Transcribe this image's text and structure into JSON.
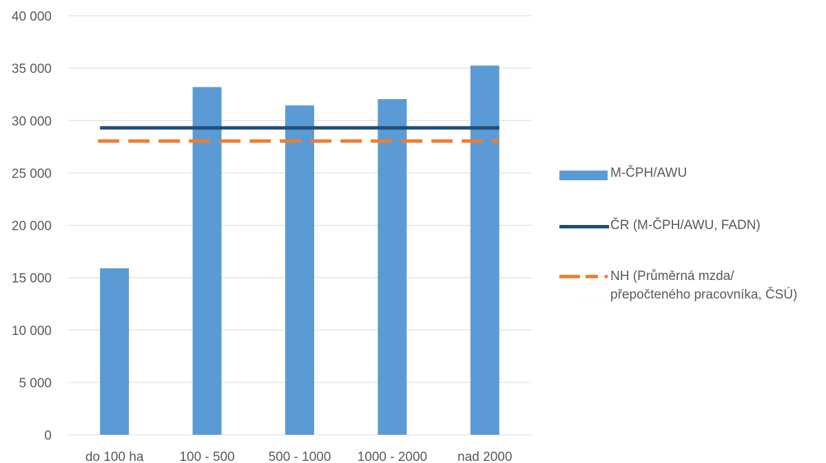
{
  "colors": {
    "bar": "#5b9bd5",
    "national": "#1f4e79",
    "wage": "#ed7d31",
    "grid": "#d9d9d9",
    "text": "#595959"
  },
  "chart_data": {
    "type": "bar",
    "title": "",
    "xlabel": "",
    "ylabel": "",
    "categories": [
      "do 100 ha",
      "100 - 500",
      "500 - 1000",
      "1000 - 2000",
      "nad 2000"
    ],
    "ylim": [
      0,
      40000
    ],
    "yticks": [
      0,
      5000,
      10000,
      15000,
      20000,
      25000,
      30000,
      35000,
      40000
    ],
    "ytick_labels": [
      "0",
      "5 000",
      "10 000",
      "15 000",
      "20 000",
      "25 000",
      "30 000",
      "35 000",
      "40 000"
    ],
    "grid": true,
    "legend_position": "right",
    "series": [
      {
        "name": "M-ČPH/AWU",
        "type": "bar",
        "color": "#5b9bd5",
        "values": [
          15900,
          33200,
          31450,
          32050,
          35250
        ]
      },
      {
        "name": "ČR (M-ČPH/AWU, FADN)",
        "type": "line",
        "style": "solid",
        "color": "#1f4e79",
        "values": [
          29300,
          29300,
          29300,
          29300,
          29300
        ]
      },
      {
        "name": "NH (Průměrná mzda/\npřepočteného pracovníka, ČSÚ)",
        "type": "line",
        "style": "dashed",
        "color": "#ed7d31",
        "values": [
          28050,
          28050,
          28050,
          28050,
          28050
        ]
      }
    ]
  }
}
